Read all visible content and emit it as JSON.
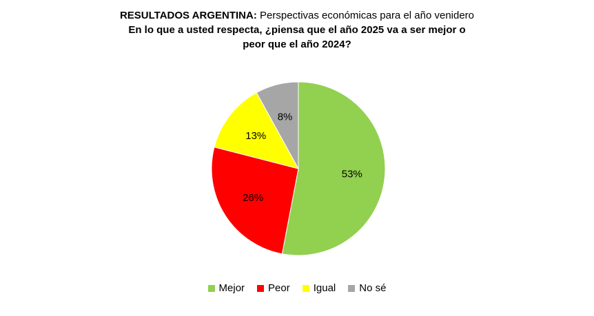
{
  "chart_data": {
    "type": "pie",
    "title_lead": "RESULTADOS ARGENTINA:",
    "title_rest": " Perspectivas económicas para el año venidero",
    "question_line1": "En lo que a usted respecta, ¿piensa que el año 2025 va a ser mejor o",
    "question_line2": "peor que el año 2024?",
    "slices": [
      {
        "label": "Mejor",
        "value": 53,
        "display": "53%",
        "color": "#92d050"
      },
      {
        "label": "Peor",
        "value": 26,
        "display": "26%",
        "color": "#ff0000"
      },
      {
        "label": "Igual",
        "value": 13,
        "display": "13%",
        "color": "#ffff00"
      },
      {
        "label": "No sé",
        "value": 8,
        "display": "8%",
        "color": "#a6a6a6"
      }
    ],
    "legend_position": "bottom"
  }
}
